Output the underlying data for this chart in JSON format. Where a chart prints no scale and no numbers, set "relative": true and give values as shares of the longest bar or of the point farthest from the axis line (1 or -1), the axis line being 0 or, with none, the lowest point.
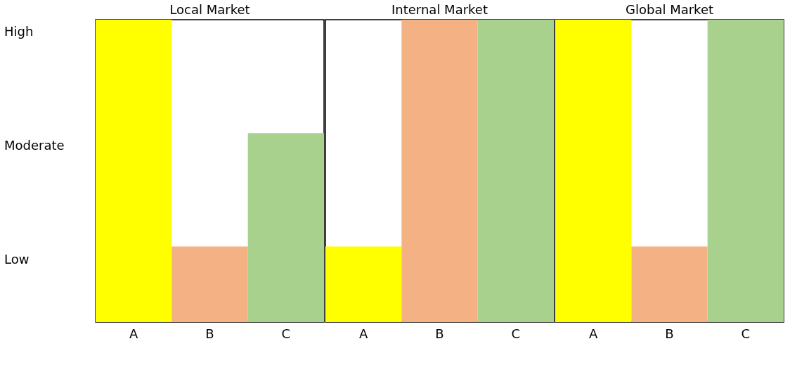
{
  "chart_data": [
    {
      "type": "bar",
      "title": "Local Market",
      "categories": [
        "A",
        "B",
        "C"
      ],
      "values": [
        1,
        0.25,
        0.625
      ],
      "colors": [
        "#ffff00",
        "#f4b183",
        "#a9d18e"
      ],
      "relative": true,
      "grid": false,
      "annotations": [
        "High",
        "Moderate",
        "Low"
      ]
    },
    {
      "type": "bar",
      "title": "Internal Market",
      "categories": [
        "A",
        "B",
        "C"
      ],
      "values": [
        0.25,
        1,
        1
      ],
      "colors": [
        "#ffff00",
        "#f4b183",
        "#a9d18e"
      ],
      "relative": true,
      "grid": false
    },
    {
      "type": "bar",
      "title": "Global Market",
      "categories": [
        "A",
        "B",
        "C"
      ],
      "values": [
        1,
        0.25,
        1
      ],
      "colors": [
        "#ffff00",
        "#f4b183",
        "#a9d18e"
      ],
      "relative": true,
      "grid": false
    }
  ]
}
